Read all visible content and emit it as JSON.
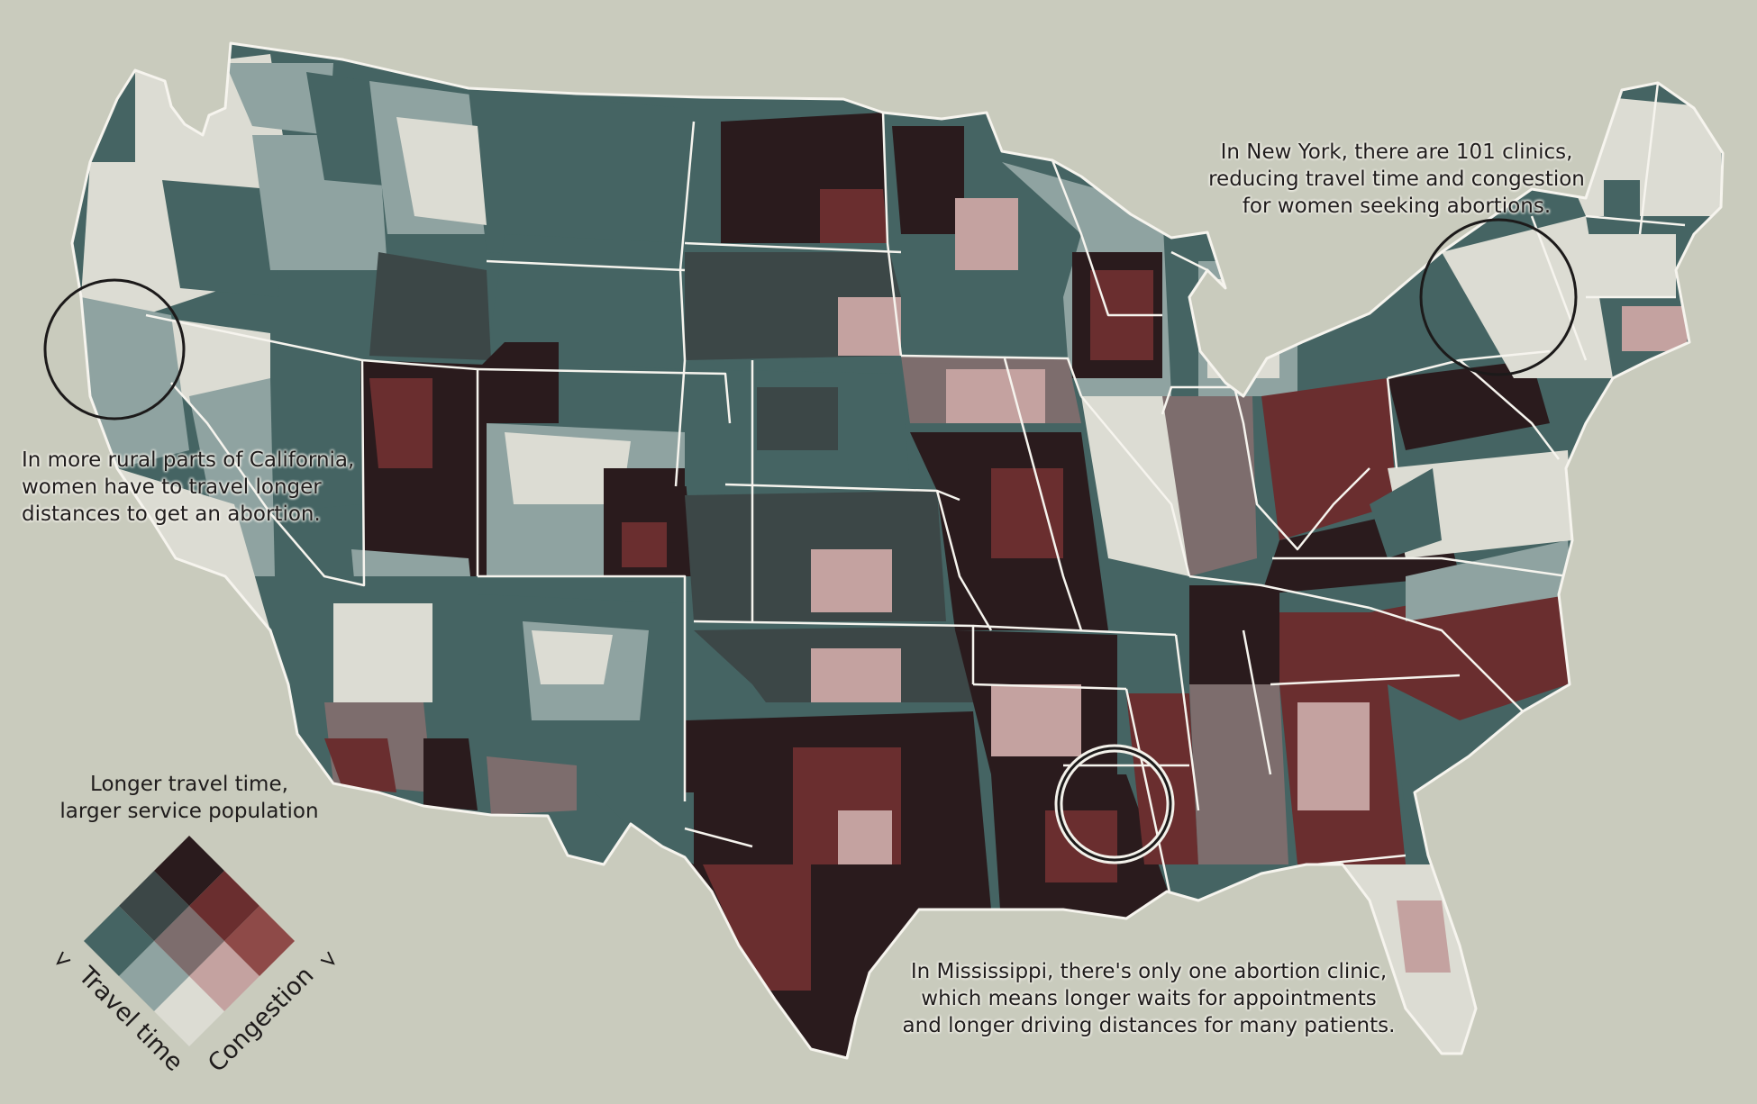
{
  "annotations": {
    "california": [
      "In more rural parts of California,",
      "women have to travel longer",
      "distances to get an abortion."
    ],
    "new_york": [
      "In New York, there are 101 clinics,",
      "reducing travel time and congestion",
      "for women seeking abortions."
    ],
    "mississippi": [
      "In Mississippi, there's only one abortion clinic,",
      "which means longer waits for appointments",
      "and longer driving distances for many patients."
    ]
  },
  "legend": {
    "title_lines": [
      "Longer travel time,",
      "larger service population"
    ],
    "axis_travel": "Travel time",
    "axis_congestion": "Congestion",
    "palette": [
      [
        "#dcdcd3",
        "#c4a2a0",
        "#8e4a48"
      ],
      [
        "#8fa3a1",
        "#7d6d6d",
        "#6a2e2f"
      ],
      [
        "#456463",
        "#3c4747",
        "#2a1b1d"
      ]
    ]
  },
  "colors": {
    "background": "#c9cbbd",
    "state_border": "#f6f4ee",
    "circle_stroke": "#1c1a1a"
  }
}
